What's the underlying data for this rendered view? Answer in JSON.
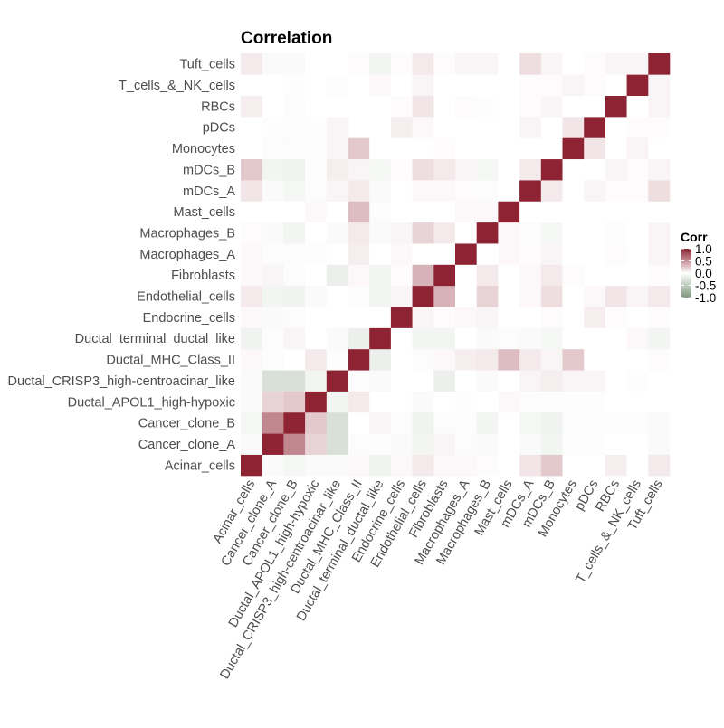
{
  "chart_data": {
    "type": "heatmap",
    "title": "Correlation",
    "labels": [
      "Acinar_cells",
      "Cancer_clone_A",
      "Cancer_clone_B",
      "Ductal_APOL1_high-hypoxic",
      "Ductal_CRISP3_high-centroacinar_like",
      "Ductal_MHC_Class_II",
      "Ductal_terminal_ductal_like",
      "Endocrine_cells",
      "Endothelial_cells",
      "Fibroblasts",
      "Macrophages_A",
      "Macrophages_B",
      "Mast_cells",
      "mDCs_A",
      "mDCs_B",
      "Monocytes",
      "pDCs",
      "RBCs",
      "T_cells_&_NK_cells",
      "Tuft_cells"
    ],
    "matrix": [
      [
        1,
        -0.05,
        -0.08,
        -0.05,
        -0.05,
        0.03,
        -0.12,
        0.03,
        0.1,
        0.03,
        0.03,
        0.02,
        0,
        0.12,
        0.25,
        0,
        0,
        0.08,
        0,
        0.1
      ],
      [
        -0.05,
        1,
        0.55,
        0.2,
        -0.3,
        -0.03,
        -0.03,
        -0.05,
        -0.1,
        0.05,
        -0.03,
        -0.05,
        0,
        -0.05,
        -0.1,
        -0.03,
        -0.02,
        0,
        0,
        -0.05
      ],
      [
        -0.08,
        0.55,
        1,
        0.25,
        -0.3,
        0,
        0.05,
        -0.03,
        -0.12,
        -0.03,
        -0.03,
        -0.1,
        0,
        -0.08,
        -0.12,
        -0.03,
        -0.03,
        -0.03,
        -0.02,
        -0.05
      ],
      [
        -0.05,
        0.2,
        0.25,
        1,
        -0.1,
        0.1,
        0,
        0,
        -0.05,
        0,
        -0.02,
        0,
        0.03,
        -0.03,
        -0.02,
        -0.02,
        -0.02,
        0,
        0,
        0
      ],
      [
        -0.05,
        -0.3,
        -0.3,
        -0.1,
        1,
        -0.03,
        -0.05,
        0,
        0,
        -0.15,
        0,
        -0.05,
        0,
        0.05,
        0.08,
        0.05,
        0.05,
        0,
        -0.02,
        0
      ],
      [
        0.03,
        -0.03,
        0,
        0.1,
        -0.03,
        1,
        -0.15,
        0,
        -0.03,
        0.03,
        0.08,
        0.1,
        0.3,
        0.1,
        0.05,
        0.25,
        0,
        0,
        0,
        0.02
      ],
      [
        -0.12,
        -0.03,
        0.05,
        0,
        -0.05,
        -0.15,
        1,
        0,
        -0.1,
        -0.1,
        0,
        -0.05,
        -0.03,
        -0.05,
        -0.08,
        0,
        0,
        0,
        0.03,
        -0.1
      ],
      [
        0.03,
        -0.05,
        -0.03,
        0,
        0,
        0,
        0,
        1,
        0.05,
        0.02,
        0.03,
        0.05,
        0,
        0,
        0.02,
        0,
        0.08,
        0.02,
        0,
        0.02
      ],
      [
        0.1,
        -0.1,
        -0.12,
        -0.05,
        0,
        -0.03,
        -0.1,
        0.05,
        1,
        0.35,
        0,
        0.2,
        0,
        0.03,
        0.15,
        0,
        0.03,
        0.12,
        0.05,
        0.1
      ],
      [
        0.03,
        0.05,
        -0.03,
        0,
        -0.15,
        0.03,
        -0.1,
        0.02,
        0.35,
        1,
        0,
        0.1,
        0,
        0.03,
        0.1,
        0.02,
        0,
        0,
        0,
        0.02
      ],
      [
        0.03,
        -0.03,
        -0.03,
        -0.02,
        0,
        0.08,
        0,
        0.03,
        0,
        0,
        1,
        0,
        0.03,
        0.02,
        0.05,
        0,
        0,
        0.02,
        0,
        0.05
      ],
      [
        0.02,
        -0.05,
        -0.1,
        0,
        -0.05,
        0.1,
        -0.05,
        0.05,
        0.2,
        0.1,
        0,
        1,
        0.03,
        -0.03,
        -0.08,
        0,
        0,
        -0.02,
        0,
        0.05
      ],
      [
        0,
        0,
        0,
        0.03,
        0,
        0.3,
        -0.03,
        0,
        0,
        0,
        0.03,
        0.03,
        1,
        0,
        0,
        0,
        0,
        0,
        0,
        0
      ],
      [
        0.12,
        -0.05,
        -0.08,
        -0.03,
        0.05,
        0.1,
        -0.05,
        0,
        0.03,
        0.03,
        0.02,
        -0.03,
        0,
        1,
        0.1,
        0,
        0.05,
        0.02,
        0.02,
        0.15
      ],
      [
        0.25,
        -0.1,
        -0.12,
        -0.02,
        0.08,
        0.05,
        -0.08,
        0.02,
        0.15,
        0.1,
        0.05,
        -0.08,
        0,
        0.1,
        1,
        0,
        0,
        0.05,
        0.02,
        0.05
      ],
      [
        0,
        -0.03,
        -0.03,
        -0.02,
        0.05,
        0.25,
        0,
        0,
        0,
        0.02,
        0,
        0,
        0,
        0,
        0,
        1,
        0.12,
        0,
        0.05,
        0
      ],
      [
        0,
        -0.02,
        -0.03,
        -0.02,
        0.05,
        0,
        0,
        0.08,
        0.03,
        0,
        0,
        0,
        0,
        0.05,
        0,
        0.12,
        1,
        0,
        0.02,
        0.02
      ],
      [
        0.08,
        0,
        -0.03,
        0,
        0,
        0,
        0,
        0.02,
        0.12,
        0,
        0.02,
        -0.02,
        0,
        0.02,
        0.05,
        0,
        0,
        1,
        0,
        0.05
      ],
      [
        0,
        0,
        -0.02,
        0,
        -0.02,
        0,
        0.03,
        0,
        0.05,
        0,
        0,
        0,
        0,
        0.02,
        0.02,
        0.05,
        0.02,
        0,
        1,
        0.05
      ],
      [
        0.1,
        -0.05,
        -0.05,
        0,
        0,
        0.02,
        -0.1,
        0.02,
        0.1,
        0.02,
        0.05,
        0.05,
        0,
        0.15,
        0.05,
        0,
        0.02,
        0.05,
        0.05,
        1
      ]
    ],
    "value_range": [
      -1,
      1
    ],
    "colors": {
      "low": "#7f977e",
      "mid": "#ffffff",
      "high": "#8e2433"
    },
    "legend": {
      "title": "Corr",
      "ticks": [
        "1.0",
        "0.5",
        "0.0",
        "-0.5",
        "-1.0"
      ],
      "tick_values": [
        1,
        0.5,
        0,
        -0.5,
        -1
      ],
      "placement": "right"
    },
    "grid": false
  }
}
